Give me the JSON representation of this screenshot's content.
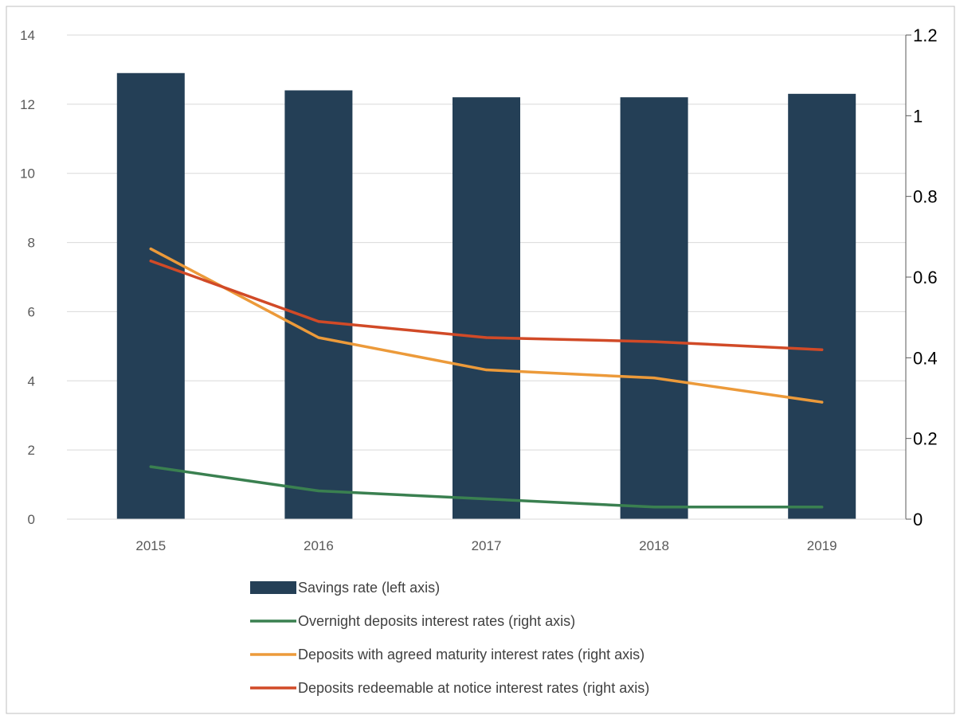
{
  "chart_data": {
    "type": "bar",
    "categories": [
      "2015",
      "2016",
      "2017",
      "2018",
      "2019"
    ],
    "title": "",
    "xlabel": "",
    "ylabel": "",
    "left_axis": {
      "min": 0,
      "max": 14,
      "ticks": [
        "0",
        "2",
        "4",
        "6",
        "8",
        "10",
        "12",
        "14"
      ]
    },
    "right_axis": {
      "min": 0,
      "max": 1.2,
      "ticks": [
        "0",
        "0.2",
        "0.4",
        "0.6",
        "0.8",
        "1",
        "1.2"
      ]
    },
    "grid": true,
    "legend_position": "bottom",
    "series": [
      {
        "name": "Savings rate (left axis)",
        "kind": "bar",
        "axis": "left",
        "color": "#243f56",
        "values": [
          12.9,
          12.4,
          12.2,
          12.2,
          12.3
        ]
      },
      {
        "name": "Overnight deposits interest rates (right axis)",
        "kind": "line",
        "axis": "right",
        "color": "#3a8050",
        "values": [
          0.13,
          0.07,
          0.05,
          0.03,
          0.03
        ]
      },
      {
        "name": "Deposits with agreed maturity interest rates (right axis)",
        "kind": "line",
        "axis": "right",
        "color": "#ec9a3a",
        "values": [
          0.67,
          0.45,
          0.37,
          0.35,
          0.29
        ]
      },
      {
        "name": "Deposits redeemable at notice interest rates (right axis)",
        "kind": "line",
        "axis": "right",
        "color": "#d14a27",
        "values": [
          0.64,
          0.49,
          0.45,
          0.44,
          0.42
        ]
      }
    ]
  }
}
